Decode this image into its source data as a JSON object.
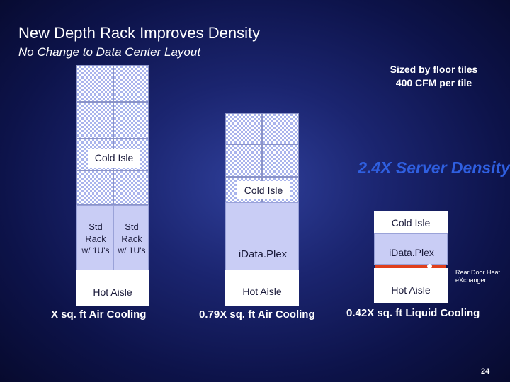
{
  "slide": {
    "title": "New Depth Rack Improves Density",
    "subtitle": "No Change to Data Center Layout",
    "note_line1": "Sized by floor tiles",
    "note_line2": "400 CFM per tile",
    "density_label": "2.4X Server Density",
    "page_number": "24"
  },
  "layouts": [
    {
      "cold_aisle": "Cold Isle",
      "racks": [
        {
          "line1": "Std",
          "line2": "Rack",
          "line3": "w/ 1U's"
        },
        {
          "line1": "Std",
          "line2": "Rack",
          "line3": "w/ 1U's"
        }
      ],
      "hot_aisle": "Hot Aisle",
      "caption": "X sq. ft Air Cooling"
    },
    {
      "cold_aisle": "Cold Isle",
      "rack": "iData.Plex",
      "hot_aisle": "Hot Aisle",
      "caption": "0.79X sq. ft Air Cooling"
    },
    {
      "cold_aisle": "Cold Isle",
      "rack": "iData.Plex",
      "hot_aisle": "Hot Aisle",
      "caption": "0.42X sq. ft Liquid Cooling",
      "callout_line1": "Rear Door Heat",
      "callout_line2": "eXchanger",
      "callout_color": "#e0401c"
    }
  ]
}
